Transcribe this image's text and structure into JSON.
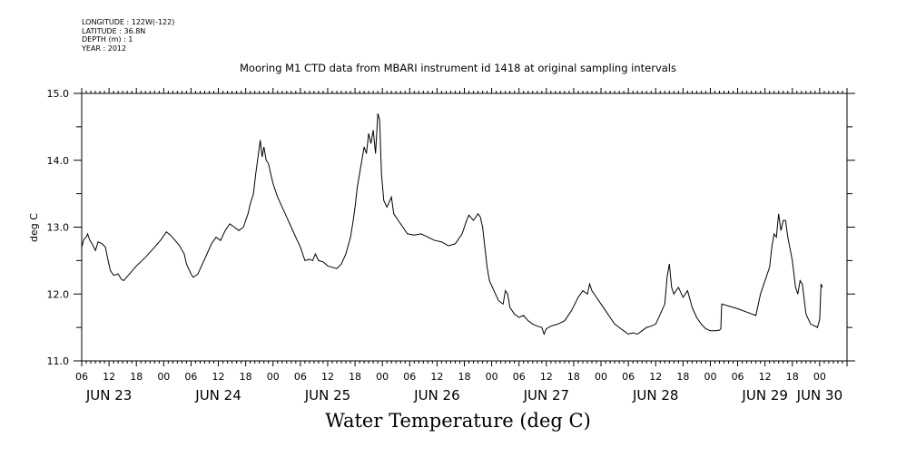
{
  "meta": {
    "longitude": "LONGITUDE : 122W(-122)",
    "latitude": "LATITUDE : 36.8N",
    "depth": "DEPTH (m) : 1",
    "year": "YEAR : 2012"
  },
  "colors": {
    "line": "#000000",
    "axis": "#000000",
    "background": "#ffffff"
  },
  "chart_data": {
    "type": "line",
    "title": "Mooring M1 CTD data from MBARI instrument id 1418 at original sampling intervals",
    "xlabel": "Water Temperature (deg C)",
    "ylabel": "deg C",
    "ylim": [
      11.0,
      15.0
    ],
    "xlim_hours": [
      6,
      174
    ],
    "y_ticks": [
      "11.0",
      "12.0",
      "13.0",
      "14.0",
      "15.0"
    ],
    "x_tick_labels": [
      "06",
      "12",
      "18",
      "00",
      "06",
      "12",
      "18",
      "00",
      "06",
      "12",
      "18",
      "00",
      "06",
      "12",
      "18",
      "00",
      "06",
      "12",
      "18",
      "00",
      "06",
      "12",
      "18",
      "00",
      "06",
      "12",
      "18",
      "00"
    ],
    "day_labels": [
      "JUN 23",
      "JUN 24",
      "JUN 25",
      "JUN 26",
      "JUN 27",
      "JUN 28",
      "JUN 29",
      "JUN 30"
    ],
    "grid": false,
    "series": [
      {
        "points": [
          [
            6,
            12.7
          ],
          [
            6.5,
            12.82
          ],
          [
            7,
            12.85
          ],
          [
            7.3,
            12.9
          ],
          [
            7.8,
            12.8
          ],
          [
            8.3,
            12.75
          ],
          [
            9,
            12.65
          ],
          [
            9.6,
            12.78
          ],
          [
            10.5,
            12.75
          ],
          [
            11.2,
            12.7
          ],
          [
            11.8,
            12.5
          ],
          [
            12.3,
            12.35
          ],
          [
            13,
            12.28
          ],
          [
            14,
            12.3
          ],
          [
            14.7,
            12.22
          ],
          [
            15.2,
            12.2
          ],
          [
            16.5,
            12.3
          ],
          [
            18,
            12.42
          ],
          [
            20,
            12.55
          ],
          [
            22,
            12.7
          ],
          [
            23.5,
            12.82
          ],
          [
            24.6,
            12.93
          ],
          [
            25.5,
            12.88
          ],
          [
            26.5,
            12.8
          ],
          [
            27.5,
            12.72
          ],
          [
            28.5,
            12.6
          ],
          [
            29,
            12.45
          ],
          [
            30,
            12.3
          ],
          [
            30.5,
            12.25
          ],
          [
            31.5,
            12.3
          ],
          [
            32.5,
            12.45
          ],
          [
            33.5,
            12.6
          ],
          [
            34.5,
            12.75
          ],
          [
            35.5,
            12.85
          ],
          [
            36.5,
            12.8
          ],
          [
            37.5,
            12.95
          ],
          [
            38.5,
            13.05
          ],
          [
            39.5,
            13.0
          ],
          [
            40.5,
            12.95
          ],
          [
            41.5,
            13.0
          ],
          [
            42,
            13.1
          ],
          [
            42.5,
            13.2
          ],
          [
            43,
            13.35
          ],
          [
            43.7,
            13.5
          ],
          [
            44.2,
            13.8
          ],
          [
            44.8,
            14.1
          ],
          [
            45.2,
            14.3
          ],
          [
            45.6,
            14.05
          ],
          [
            46,
            14.2
          ],
          [
            46.5,
            14.0
          ],
          [
            47,
            13.95
          ],
          [
            47.5,
            13.8
          ],
          [
            48,
            13.65
          ],
          [
            49,
            13.45
          ],
          [
            50,
            13.3
          ],
          [
            51,
            13.15
          ],
          [
            52,
            13.0
          ],
          [
            53,
            12.85
          ],
          [
            54,
            12.7
          ],
          [
            55,
            12.5
          ],
          [
            56,
            12.52
          ],
          [
            56.7,
            12.5
          ],
          [
            57.3,
            12.6
          ],
          [
            58,
            12.5
          ],
          [
            59,
            12.48
          ],
          [
            60,
            12.42
          ],
          [
            61,
            12.4
          ],
          [
            62,
            12.38
          ],
          [
            63,
            12.45
          ],
          [
            64,
            12.6
          ],
          [
            65,
            12.85
          ],
          [
            65.6,
            13.1
          ],
          [
            66,
            13.3
          ],
          [
            66.5,
            13.6
          ],
          [
            67,
            13.8
          ],
          [
            67.5,
            14.0
          ],
          [
            68,
            14.2
          ],
          [
            68.5,
            14.1
          ],
          [
            69,
            14.4
          ],
          [
            69.5,
            14.25
          ],
          [
            70,
            14.45
          ],
          [
            70.5,
            14.1
          ],
          [
            71,
            14.7
          ],
          [
            71.4,
            14.6
          ],
          [
            71.8,
            13.8
          ],
          [
            72.3,
            13.4
          ],
          [
            73,
            13.3
          ],
          [
            74,
            13.45
          ],
          [
            74.5,
            13.2
          ],
          [
            75.5,
            13.1
          ],
          [
            76.5,
            13.0
          ],
          [
            77.5,
            12.9
          ],
          [
            79,
            12.88
          ],
          [
            80.5,
            12.9
          ],
          [
            82,
            12.85
          ],
          [
            83.5,
            12.8
          ],
          [
            85,
            12.78
          ],
          [
            86.5,
            12.72
          ],
          [
            88,
            12.75
          ],
          [
            89.5,
            12.9
          ],
          [
            90.5,
            13.1
          ],
          [
            91,
            13.18
          ],
          [
            92,
            13.1
          ],
          [
            93,
            13.2
          ],
          [
            93.5,
            13.15
          ],
          [
            94,
            13.0
          ],
          [
            94.5,
            12.7
          ],
          [
            95,
            12.4
          ],
          [
            95.5,
            12.2
          ],
          [
            96.5,
            12.05
          ],
          [
            97.5,
            11.9
          ],
          [
            98.5,
            11.85
          ],
          [
            99,
            12.05
          ],
          [
            99.5,
            12.0
          ],
          [
            100,
            11.8
          ],
          [
            101,
            11.7
          ],
          [
            102,
            11.65
          ],
          [
            103,
            11.68
          ],
          [
            104,
            11.6
          ],
          [
            105,
            11.55
          ],
          [
            106,
            11.52
          ],
          [
            107,
            11.5
          ],
          [
            107.5,
            11.4
          ],
          [
            108,
            11.48
          ],
          [
            109,
            11.52
          ],
          [
            110.5,
            11.55
          ],
          [
            112,
            11.6
          ],
          [
            113.5,
            11.75
          ],
          [
            115,
            11.95
          ],
          [
            116,
            12.05
          ],
          [
            117,
            12.0
          ],
          [
            117.5,
            12.15
          ],
          [
            118,
            12.05
          ],
          [
            119,
            11.95
          ],
          [
            120,
            11.85
          ],
          [
            121,
            11.75
          ],
          [
            122,
            11.65
          ],
          [
            123,
            11.55
          ],
          [
            124,
            11.5
          ],
          [
            125,
            11.45
          ],
          [
            126,
            11.4
          ],
          [
            127,
            11.42
          ],
          [
            128,
            11.4
          ],
          [
            129,
            11.45
          ],
          [
            130,
            11.5
          ],
          [
            131,
            11.52
          ],
          [
            132,
            11.55
          ],
          [
            133,
            11.7
          ],
          [
            134,
            11.85
          ],
          [
            134.5,
            12.25
          ],
          [
            135,
            12.45
          ],
          [
            135.5,
            12.1
          ],
          [
            136,
            12.0
          ],
          [
            137,
            12.1
          ],
          [
            138,
            11.95
          ],
          [
            139,
            12.05
          ],
          [
            140,
            11.8
          ],
          [
            141,
            11.65
          ],
          [
            142,
            11.55
          ],
          [
            143,
            11.48
          ],
          [
            144,
            11.45
          ],
          [
            145,
            11.45
          ],
          [
            146,
            11.46
          ],
          [
            146.3,
            11.48
          ],
          [
            146.5,
            11.85
          ],
          [
            148,
            11.82
          ],
          [
            150,
            11.78
          ],
          [
            152,
            11.73
          ],
          [
            154,
            11.68
          ],
          [
            155,
            12.0
          ],
          [
            156,
            12.2
          ],
          [
            157,
            12.4
          ],
          [
            157.5,
            12.7
          ],
          [
            158,
            12.9
          ],
          [
            158.5,
            12.85
          ],
          [
            159,
            13.2
          ],
          [
            159.5,
            12.95
          ],
          [
            160,
            13.1
          ],
          [
            160.5,
            13.1
          ],
          [
            161,
            12.85
          ],
          [
            162,
            12.5
          ],
          [
            162.7,
            12.1
          ],
          [
            163.2,
            12.0
          ],
          [
            163.7,
            12.2
          ],
          [
            164.2,
            12.15
          ],
          [
            165,
            11.7
          ],
          [
            166,
            11.55
          ],
          [
            167,
            11.52
          ],
          [
            167.5,
            11.5
          ],
          [
            168,
            11.62
          ],
          [
            168.3,
            12.15
          ],
          [
            168.6,
            12.1
          ]
        ]
      }
    ]
  }
}
